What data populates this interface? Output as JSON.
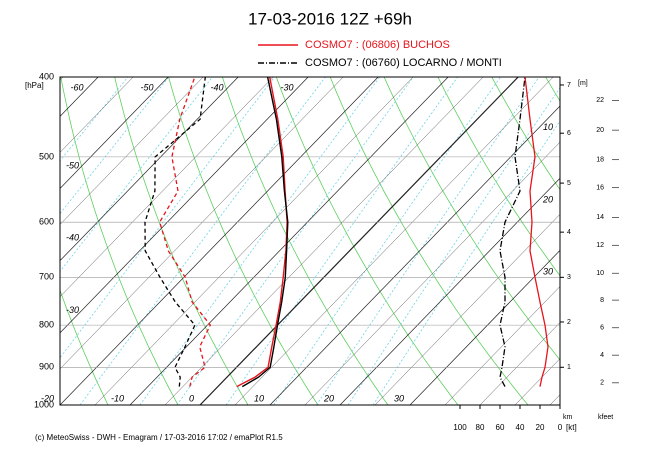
{
  "chart_data": {
    "type": "skewt",
    "title": "17-03-2016  12Z +69h",
    "pressure": [
      950,
      925,
      900,
      850,
      800,
      750,
      700,
      650,
      600,
      550,
      500,
      450,
      400
    ],
    "series": [
      {
        "name": "COSMO7 : (06806)  BUCHOS",
        "color": "#e8141c",
        "style": "solid",
        "temperature": [
          2.7,
          4.0,
          4.5,
          2.2,
          -0.2,
          -2.8,
          -5.8,
          -9.1,
          -12.9,
          -17.5,
          -22.5,
          -28.5,
          -35.5
        ],
        "dewpoint": [
          -4.0,
          -5.0,
          -4.5,
          -8.1,
          -9.6,
          -15.4,
          -19.8,
          -25.9,
          -31.1,
          -32.8,
          -38.4,
          -42.5,
          -46.2
        ],
        "wind_speed": [
          20,
          18,
          15,
          12,
          15,
          20,
          25,
          30,
          28,
          30,
          25,
          30,
          35
        ]
      },
      {
        "name": "COSMO7 : (06760)  LOCARNO / MONTI",
        "color": "#000000",
        "style": "dashdot",
        "temperature": [
          3.5,
          4.5,
          4.8,
          2.5,
          0.0,
          -2.6,
          -5.5,
          -9.0,
          -12.8,
          -17.6,
          -22.7,
          -28.7,
          -35.8
        ],
        "dewpoint": [
          -5.5,
          -6.7,
          -8.8,
          -10.2,
          -11.8,
          -17.8,
          -23.4,
          -29.2,
          -33.2,
          -36.1,
          -40.8,
          -39.6,
          -44.7
        ],
        "wind_speed": [
          55,
          60,
          58,
          55,
          60,
          55,
          55,
          60,
          55,
          40,
          45,
          40,
          35
        ]
      }
    ],
    "ylim": [
      1000,
      400
    ],
    "yticks": [
      400,
      500,
      600,
      700,
      800,
      900,
      1000
    ],
    "y_label": "[hPa]",
    "log_y": true,
    "xlim": [
      -20,
      50
    ],
    "xticks": [
      -60,
      -50,
      -40,
      -30,
      -20,
      -10,
      0,
      10,
      20,
      30
    ],
    "wind": {
      "xlim": [
        100,
        0
      ],
      "xticks": [
        100,
        80,
        60,
        40,
        20,
        0
      ],
      "label": "[kt]"
    },
    "annotations": [
      {
        "value": 10,
        "pressure": 461
      },
      {
        "value": 20,
        "pressure": 564
      },
      {
        "value": 30,
        "pressure": 690
      }
    ],
    "height_km": {
      "header": "[m]",
      "footer": "km",
      "ticks": [
        {
          "value": 1,
          "pressure": 900
        },
        {
          "value": 2,
          "pressure": 793
        },
        {
          "value": 3,
          "pressure": 700
        },
        {
          "value": 4,
          "pressure": 617
        },
        {
          "value": 5,
          "pressure": 538
        },
        {
          "value": 6,
          "pressure": 468
        },
        {
          "value": 7,
          "pressure": 409
        }
      ]
    },
    "height_kfeet": {
      "footer": "kfeet",
      "ticks": [
        {
          "value": 2,
          "pressure": 940
        },
        {
          "value": 4,
          "pressure": 870
        },
        {
          "value": 6,
          "pressure": 806
        },
        {
          "value": 8,
          "pressure": 746
        },
        {
          "value": 10,
          "pressure": 692
        },
        {
          "value": 12,
          "pressure": 640
        },
        {
          "value": 14,
          "pressure": 592
        },
        {
          "value": 16,
          "pressure": 545
        },
        {
          "value": 18,
          "pressure": 504
        },
        {
          "value": 20,
          "pressure": 464
        },
        {
          "value": 22,
          "pressure": 427
        }
      ]
    },
    "credit": "(c) MeteoSwiss - DWH - Emagram / 17-03-2016  17:02 / emaPlot R1.5"
  }
}
